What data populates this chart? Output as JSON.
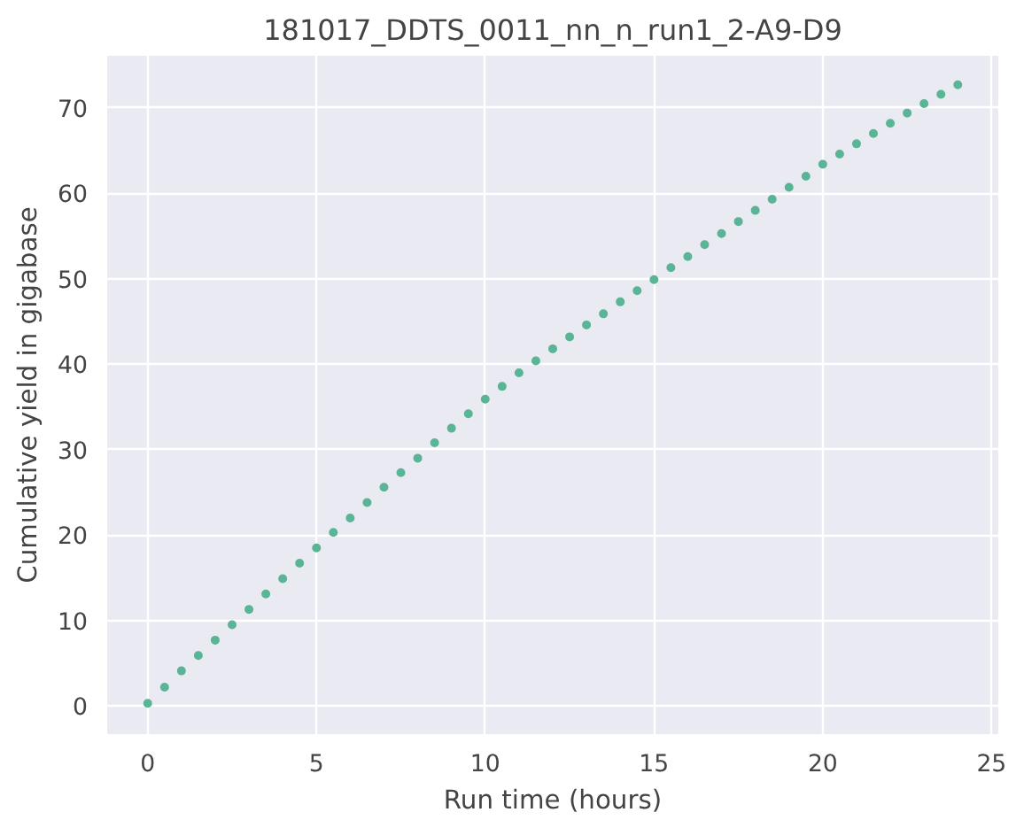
{
  "chart_data": {
    "type": "scatter",
    "title": "181017_DDTS_0011_nn_n_run1_2-A9-D9",
    "xlabel": "Run time (hours)",
    "ylabel": "Cumulative yield in gigabase",
    "x": [
      0,
      0.5,
      1,
      1.5,
      2,
      2.5,
      3,
      3.5,
      4,
      4.5,
      5,
      5.5,
      6,
      6.5,
      7,
      7.5,
      8,
      8.5,
      9,
      9.5,
      10,
      10.5,
      11,
      11.5,
      12,
      12.5,
      13,
      13.5,
      14,
      14.5,
      15,
      15.5,
      16,
      16.5,
      17,
      17.5,
      18,
      18.5,
      19,
      19.5,
      20,
      20.5,
      21,
      21.5,
      22,
      22.5,
      23,
      23.5,
      24
    ],
    "series": [
      {
        "color": "#5ab496",
        "values": [
          0.3,
          2.2,
          4.1,
          5.9,
          7.7,
          9.5,
          11.3,
          13.1,
          14.9,
          16.7,
          18.5,
          20.3,
          22.0,
          23.8,
          25.6,
          27.3,
          29.0,
          30.8,
          32.5,
          34.2,
          35.9,
          37.4,
          39.0,
          40.4,
          41.8,
          43.2,
          44.6,
          45.9,
          47.3,
          48.6,
          49.9,
          51.3,
          52.6,
          54.0,
          55.3,
          56.7,
          58.0,
          59.3,
          60.7,
          62.0,
          63.4,
          64.6,
          65.8,
          67.0,
          68.2,
          69.4,
          70.5,
          71.6,
          72.7
        ]
      }
    ],
    "xlim": [
      -1.2,
      25.2
    ],
    "ylim": [
      -3.3,
      76.1
    ],
    "xticks": [
      0,
      5,
      10,
      15,
      20,
      25
    ],
    "yticks": [
      0,
      10,
      20,
      30,
      40,
      50,
      60,
      70
    ],
    "grid": true,
    "marker": "circle"
  }
}
